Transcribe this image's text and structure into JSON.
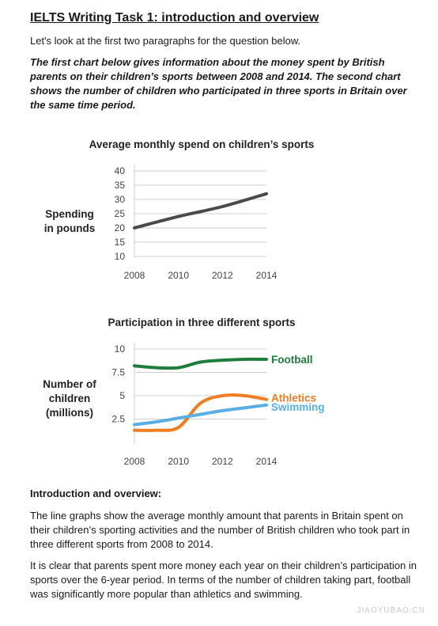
{
  "document": {
    "heading": "IELTS Writing Task 1: introduction and overview",
    "intro": "Let's look at the first two paragraphs for the question below.",
    "question": "The first chart below gives information about the money spent by British parents on their children’s sports between 2008 and 2014. The second chart shows the number of children who participated in three sports in Britain over the same time period.",
    "section_title": "Introduction and overview:",
    "paragraph1": "The line graphs show the average monthly amount that parents in Britain spent on their children’s sporting activities and the number of British children who took part in three different sports from 2008 to 2014.",
    "paragraph2": "It is clear that parents spent more money each year on their children’s participation in sports over the 6-year period. In terms of the number of children taking part, football was significantly more popular than athletics and swimming.",
    "watermark": "JIAOYUBAO.CN"
  },
  "chart_data": [
    {
      "type": "line",
      "title": "Average monthly spend on children’s sports",
      "ylabel_lines": [
        "Spending",
        "in pounds"
      ],
      "xlabel": "",
      "x": [
        2008,
        2010,
        2012,
        2014
      ],
      "yticks": [
        10,
        15,
        20,
        25,
        30,
        35,
        40
      ],
      "ylim": [
        10,
        40
      ],
      "xlim": [
        2008,
        2014
      ],
      "grid": true,
      "series": [
        {
          "values": [
            20,
            24,
            27.5,
            32
          ],
          "color": "#4a4a4a"
        }
      ]
    },
    {
      "type": "line",
      "title": "Participation in three different sports",
      "ylabel_lines": [
        "Number of",
        "children",
        "(millions)"
      ],
      "xlabel": "",
      "x": [
        2008,
        2010,
        2012,
        2014
      ],
      "yticks": [
        "2.5",
        "5",
        "7.5",
        "10"
      ],
      "ylim": [
        0,
        10
      ],
      "xlim": [
        2008,
        2014
      ],
      "grid": true,
      "legend": "right",
      "series": [
        {
          "name": "Football",
          "x": [
            2008,
            2009,
            2010,
            2011,
            2012,
            2013,
            2014
          ],
          "values": [
            8.2,
            8.0,
            8.0,
            8.6,
            8.8,
            8.9,
            8.9
          ],
          "color": "#1e7d3a"
        },
        {
          "name": "Athletics",
          "x": [
            2008,
            2009,
            2010,
            2011,
            2012,
            2013,
            2014
          ],
          "values": [
            1.3,
            1.3,
            1.6,
            4.2,
            5.0,
            5.0,
            4.6
          ],
          "color": "#ef7d22"
        },
        {
          "name": "Swimming",
          "x": [
            2008,
            2009,
            2010,
            2011,
            2012,
            2013,
            2014
          ],
          "values": [
            1.9,
            2.2,
            2.6,
            3.0,
            3.4,
            3.7,
            4.0
          ],
          "color": "#5aaee6"
        }
      ]
    }
  ]
}
